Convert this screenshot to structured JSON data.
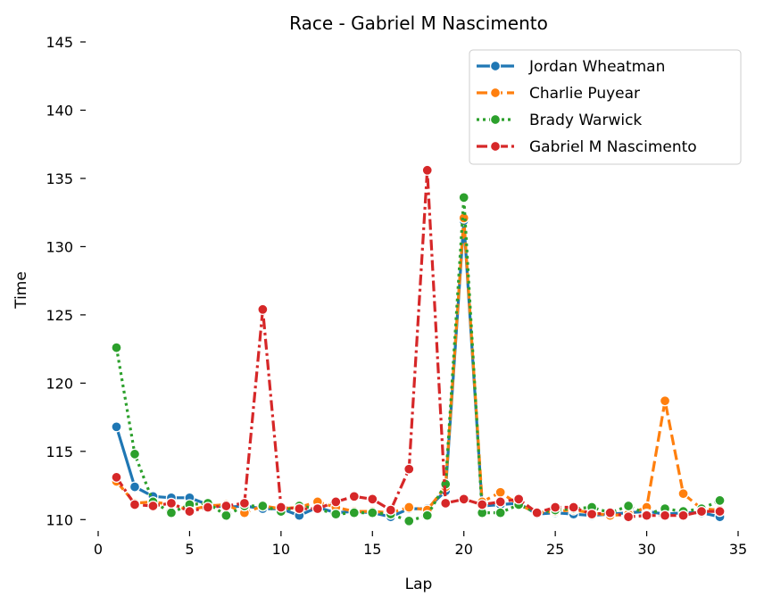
{
  "chart_data": {
    "type": "line",
    "title": "Race - Gabriel M Nascimento",
    "xlabel": "Lap",
    "ylabel": "Time",
    "xlim": [
      0,
      35
    ],
    "ylim": [
      109.3,
      145
    ],
    "xticks": [
      "0",
      "5",
      "10",
      "15",
      "20",
      "25",
      "30",
      "35"
    ],
    "yticks": [
      "110",
      "115",
      "120",
      "125",
      "130",
      "135",
      "140",
      "145"
    ],
    "grid": false,
    "legend_position": "top-right",
    "series": [
      {
        "name": "Jordan Wheatman",
        "color": "#1f77b4",
        "dash": "solid",
        "x": [
          1,
          2,
          3,
          4,
          5,
          6,
          7,
          8,
          9,
          10,
          11,
          12,
          13,
          14,
          15,
          16,
          17,
          18,
          19,
          20,
          21,
          22,
          23,
          24,
          25,
          26,
          27,
          28,
          29,
          30,
          31,
          32,
          33,
          34
        ],
        "y": [
          116.8,
          112.4,
          111.7,
          111.6,
          111.6,
          111.1,
          110.9,
          111.0,
          110.8,
          110.8,
          110.3,
          110.9,
          110.5,
          110.6,
          110.5,
          110.2,
          110.8,
          110.8,
          112.1,
          131.9,
          111.0,
          111.1,
          111.2,
          110.4,
          110.5,
          110.4,
          110.3,
          110.4,
          110.5,
          110.6,
          110.4,
          110.5,
          110.5,
          110.2
        ]
      },
      {
        "name": "Charlie Puyear",
        "color": "#ff7f0e",
        "dash": "dashed",
        "x": [
          1,
          2,
          3,
          4,
          5,
          6,
          7,
          8,
          9,
          10,
          11,
          12,
          13,
          14,
          15,
          16,
          17,
          18,
          19,
          20,
          21,
          22,
          23,
          24,
          25,
          26,
          27,
          28,
          29,
          30,
          31,
          32,
          33,
          34
        ],
        "y": [
          112.8,
          111.2,
          111.3,
          111.1,
          110.7,
          111.0,
          111.1,
          110.5,
          111.0,
          110.8,
          110.9,
          111.3,
          110.9,
          110.6,
          110.6,
          110.5,
          110.9,
          110.7,
          112.4,
          132.1,
          111.3,
          112.0,
          111.1,
          110.5,
          110.6,
          110.7,
          110.5,
          110.3,
          110.4,
          110.9,
          118.7,
          111.9,
          110.8,
          110.7
        ]
      },
      {
        "name": "Brady Warwick",
        "color": "#2ca02c",
        "dash": "dotted",
        "x": [
          1,
          2,
          3,
          4,
          5,
          6,
          7,
          8,
          9,
          10,
          11,
          12,
          13,
          14,
          15,
          16,
          17,
          18,
          19,
          20,
          21,
          22,
          23,
          24,
          25,
          26,
          27,
          28,
          29,
          30,
          31,
          32,
          33,
          34
        ],
        "y": [
          122.6,
          114.8,
          111.3,
          110.5,
          111.1,
          111.2,
          110.3,
          111.0,
          111.0,
          110.6,
          111.0,
          110.8,
          110.4,
          110.5,
          110.5,
          110.4,
          109.9,
          110.3,
          112.6,
          133.6,
          110.5,
          110.5,
          111.1,
          110.5,
          110.7,
          110.8,
          110.9,
          110.5,
          111.0,
          110.4,
          110.8,
          110.6,
          110.8,
          111.4
        ]
      },
      {
        "name": "Gabriel M Nascimento",
        "color": "#d62728",
        "dash": "dashdot",
        "x": [
          1,
          2,
          3,
          4,
          5,
          6,
          7,
          8,
          9,
          10,
          11,
          12,
          13,
          14,
          15,
          16,
          17,
          18,
          19,
          20,
          21,
          22,
          23,
          24,
          25,
          26,
          27,
          28,
          29,
          30,
          31,
          32,
          33,
          34
        ],
        "y": [
          113.1,
          111.1,
          111.0,
          111.2,
          110.6,
          110.9,
          111.0,
          111.2,
          125.4,
          110.9,
          110.8,
          110.8,
          111.3,
          111.7,
          111.5,
          110.7,
          113.7,
          135.6,
          111.2,
          111.5,
          111.1,
          111.3,
          111.5,
          110.5,
          110.9,
          110.9,
          110.4,
          110.5,
          110.2,
          110.3,
          110.3,
          110.3,
          110.6,
          110.6
        ]
      }
    ]
  }
}
